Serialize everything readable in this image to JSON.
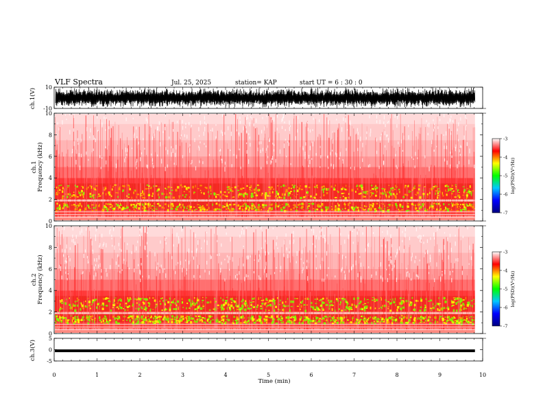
{
  "header": {
    "title": "VLF Spectra",
    "date": "Jul. 25, 2025",
    "station": "station= KAP",
    "start": "start UT =  6 : 30 : 0"
  },
  "chart_data": [
    {
      "type": "line",
      "id": "ch1_waveform",
      "ylabel": "ch.1(V)",
      "ylim": [
        -10,
        10
      ],
      "y_ticks": [
        "10",
        "-10"
      ],
      "xlim": [
        0,
        10
      ],
      "description_values": "dense oscillating waveform filling most of range",
      "data_end_x": 9.82
    },
    {
      "type": "heatmap",
      "id": "ch1_spectrogram",
      "ylabel": "ch.1 Frequency (kHz)",
      "ylim": [
        0,
        10
      ],
      "y_ticks": [
        "0",
        "2",
        "4",
        "6",
        "8",
        "10"
      ],
      "xlim": [
        0,
        10
      ],
      "data_end_x": 9.82,
      "colorbar": {
        "label": "log(PSD)(V²/Hz)",
        "range": [
          -7,
          -3
        ],
        "ticks": [
          "-3",
          "-4",
          "-5",
          "-6",
          "-7"
        ],
        "colors": [
          "#000080",
          "#0000ff",
          "#00c8ff",
          "#00ff00",
          "#ffff00",
          "#ff0000",
          "#ffffff"
        ]
      }
    },
    {
      "type": "heatmap",
      "id": "ch2_spectrogram",
      "ylabel": "ch.2 Frequency (kHz)",
      "ylim": [
        0,
        10
      ],
      "y_ticks": [
        "0",
        "2",
        "4",
        "6",
        "8",
        "10"
      ],
      "xlim": [
        0,
        10
      ],
      "data_end_x": 9.82,
      "colorbar": {
        "label": "log(PSD)(V²/Hz)",
        "range": [
          -7,
          -3
        ],
        "ticks": [
          "-3",
          "-4",
          "-5",
          "-6",
          "-7"
        ],
        "colors": [
          "#000080",
          "#0000ff",
          "#00c8ff",
          "#00ff00",
          "#ffff00",
          "#ff0000",
          "#ffffff"
        ]
      }
    },
    {
      "type": "line",
      "id": "ch3_waveform",
      "ylabel": "ch.3(V)",
      "ylim": [
        -5,
        5
      ],
      "y_ticks": [
        "5",
        "0",
        "-5"
      ],
      "xlim": [
        0,
        10
      ],
      "band": [
        -1.1,
        0.1
      ],
      "data_end_x": 9.82
    }
  ],
  "x_axis": {
    "label": "Time (min)",
    "ticks": [
      "0",
      "1",
      "2",
      "3",
      "4",
      "5",
      "6",
      "7",
      "8",
      "9",
      "10"
    ]
  }
}
